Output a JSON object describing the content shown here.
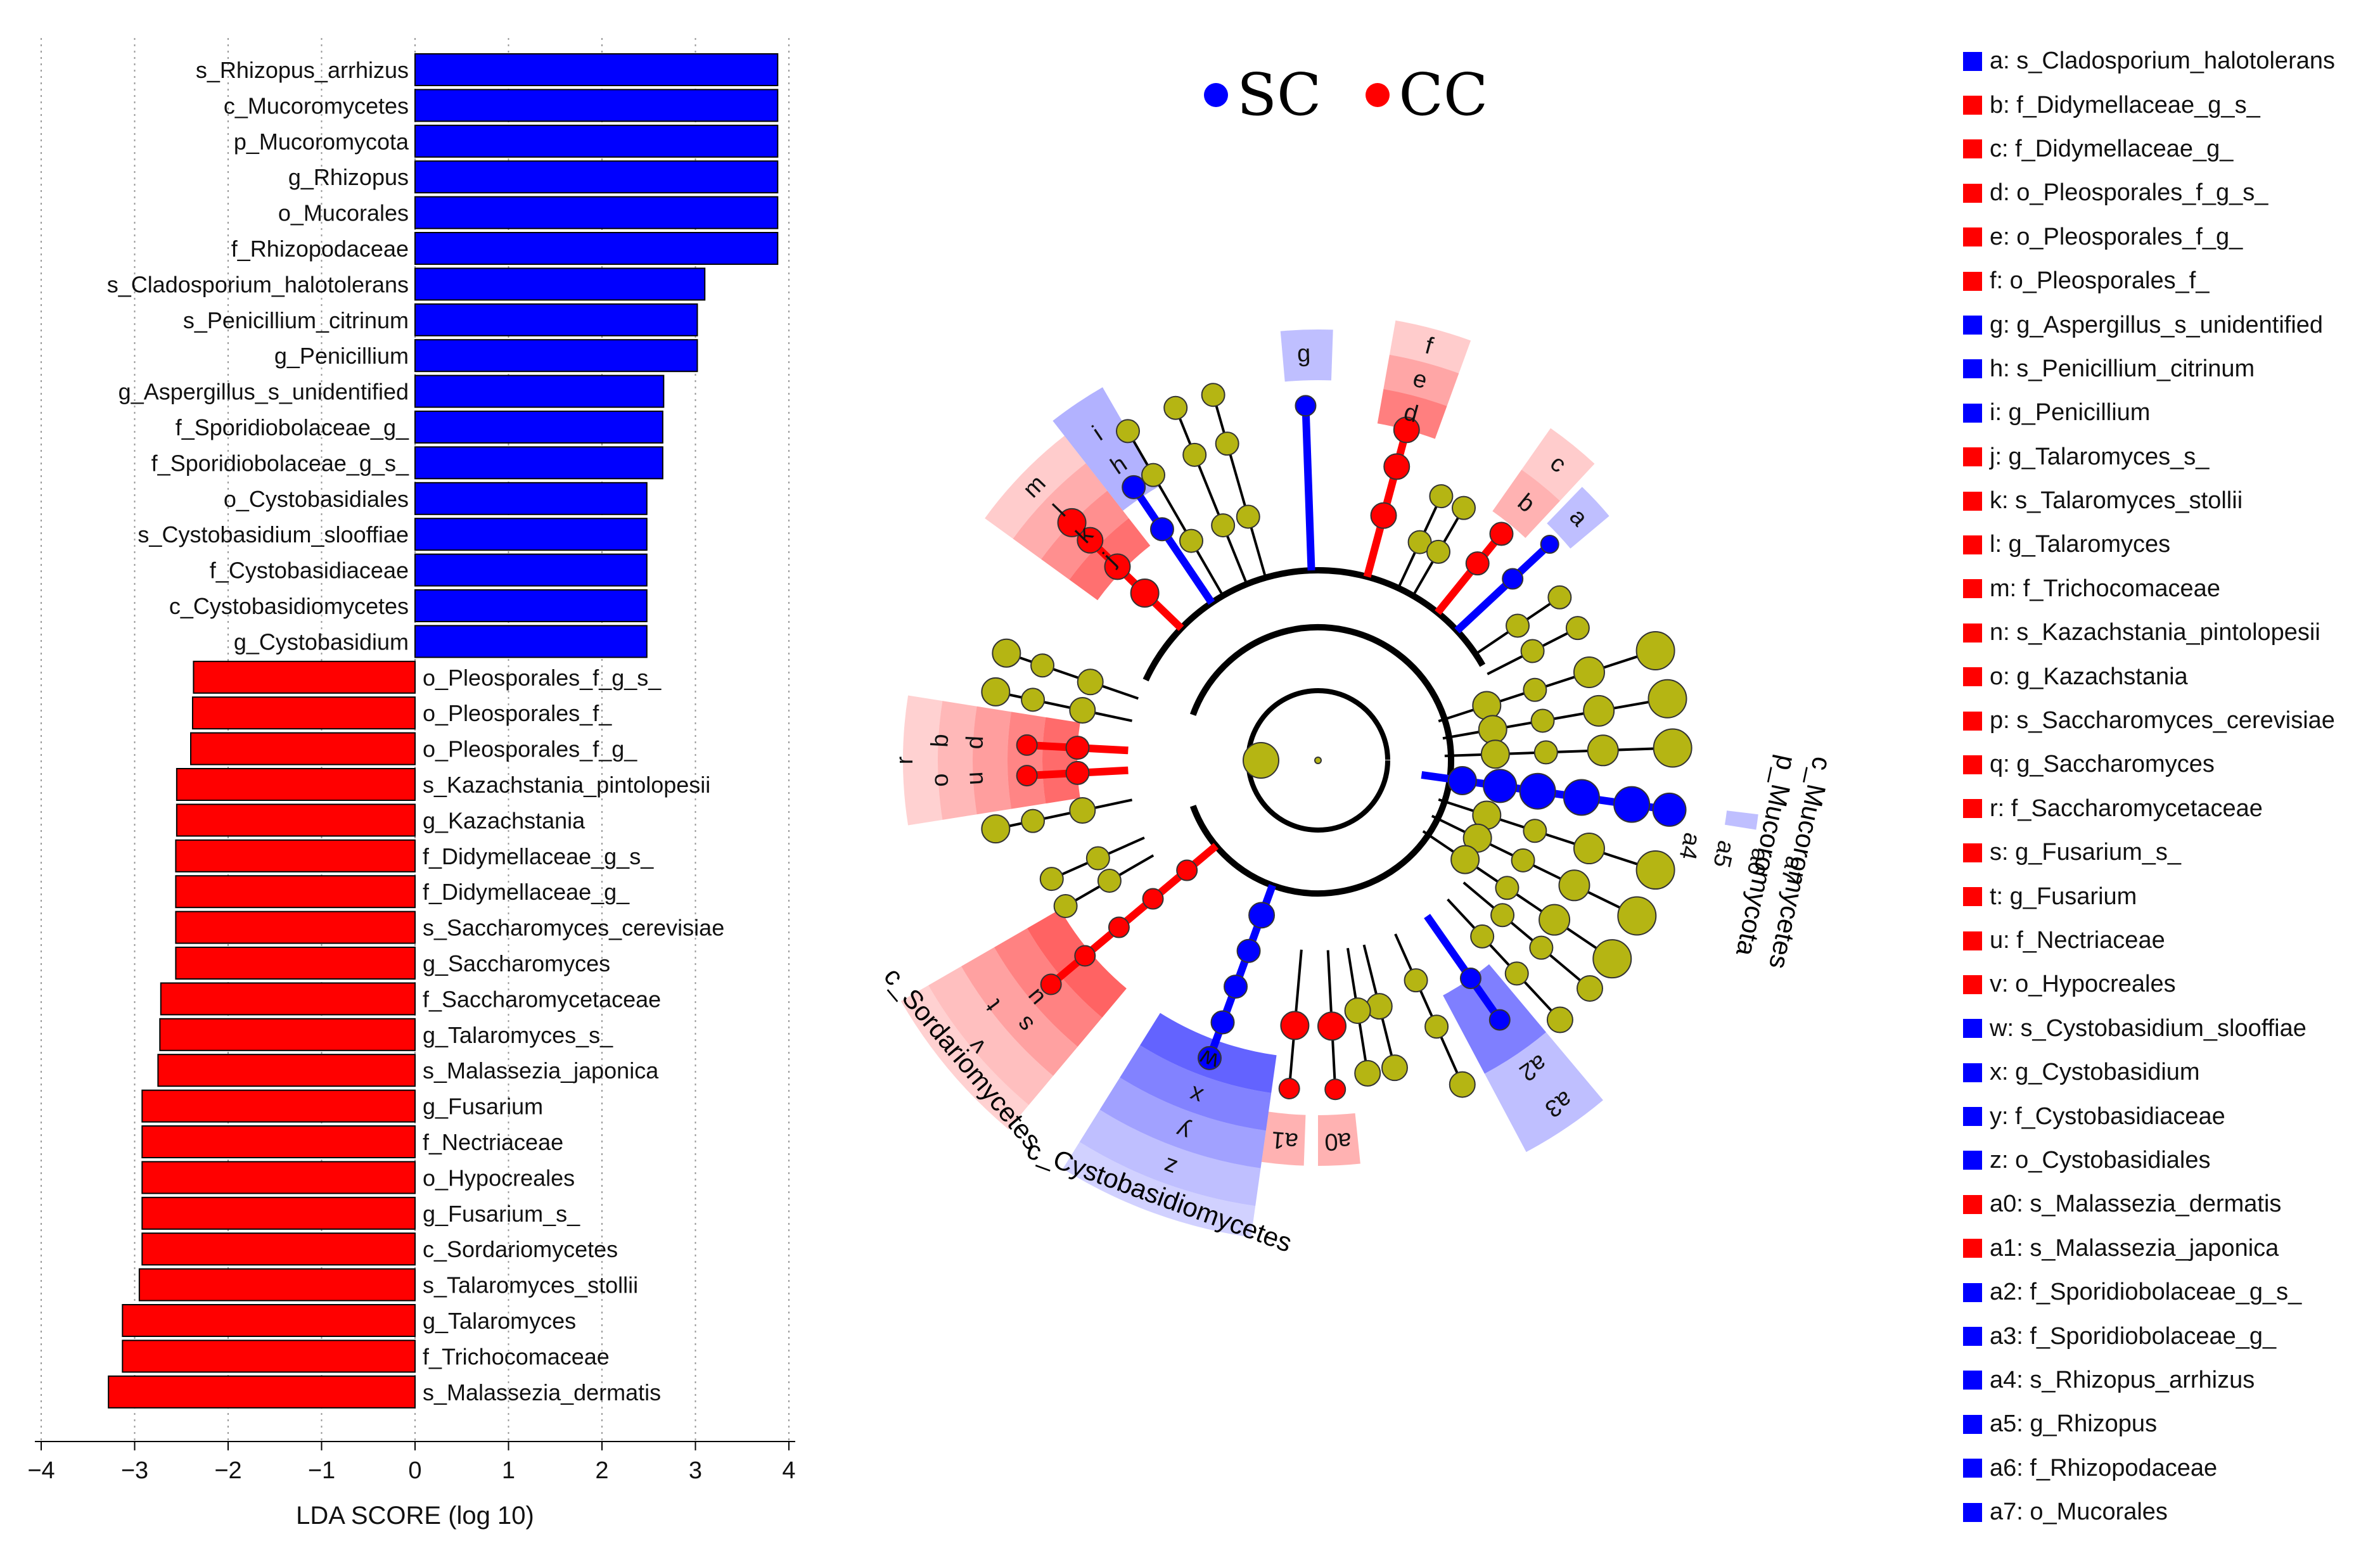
{
  "colors": {
    "SC": "#0000ff",
    "CC": "#ff0000",
    "node": "#b5b513"
  },
  "groups": [
    {
      "name": "SC",
      "color": "#0000ff"
    },
    {
      "name": "CC",
      "color": "#ff0000"
    }
  ],
  "chart_data": [
    {
      "type": "bar",
      "orientation": "horizontal",
      "title": "",
      "xlabel": "LDA SCORE (log 10)",
      "ylabel": "",
      "xlim": [
        -4,
        4
      ],
      "xticks": [
        "−4",
        "−3",
        "−2",
        "−1",
        "0",
        "1",
        "2",
        "3",
        "4"
      ],
      "grid": "vertical dotted",
      "bars": [
        {
          "label": "s_Rhizopus_arrhizus",
          "value": 3.88,
          "group": "SC"
        },
        {
          "label": "c_Mucoromycetes",
          "value": 3.88,
          "group": "SC"
        },
        {
          "label": "p_Mucoromycota",
          "value": 3.88,
          "group": "SC"
        },
        {
          "label": "g_Rhizopus",
          "value": 3.88,
          "group": "SC"
        },
        {
          "label": "o_Mucorales",
          "value": 3.88,
          "group": "SC"
        },
        {
          "label": "f_Rhizopodaceae",
          "value": 3.88,
          "group": "SC"
        },
        {
          "label": "s_Cladosporium_halotolerans",
          "value": 3.1,
          "group": "SC"
        },
        {
          "label": "s_Penicillium_citrinum",
          "value": 3.02,
          "group": "SC"
        },
        {
          "label": "g_Penicillium",
          "value": 3.02,
          "group": "SC"
        },
        {
          "label": "g_Aspergillus_s_unidentified",
          "value": 2.66,
          "group": "SC"
        },
        {
          "label": "f_Sporidiobolaceae_g_",
          "value": 2.65,
          "group": "SC"
        },
        {
          "label": "f_Sporidiobolaceae_g_s_",
          "value": 2.65,
          "group": "SC"
        },
        {
          "label": "o_Cystobasidiales",
          "value": 2.48,
          "group": "SC"
        },
        {
          "label": "s_Cystobasidium_slooffiae",
          "value": 2.48,
          "group": "SC"
        },
        {
          "label": "f_Cystobasidiaceae",
          "value": 2.48,
          "group": "SC"
        },
        {
          "label": "c_Cystobasidiomycetes",
          "value": 2.48,
          "group": "SC"
        },
        {
          "label": "g_Cystobasidium",
          "value": 2.48,
          "group": "SC"
        },
        {
          "label": "o_Pleosporales_f_g_s_",
          "value": -2.37,
          "group": "CC"
        },
        {
          "label": "o_Pleosporales_f_",
          "value": -2.38,
          "group": "CC"
        },
        {
          "label": "o_Pleosporales_f_g_",
          "value": -2.4,
          "group": "CC"
        },
        {
          "label": "s_Kazachstania_pintolopesii",
          "value": -2.55,
          "group": "CC"
        },
        {
          "label": "g_Kazachstania",
          "value": -2.55,
          "group": "CC"
        },
        {
          "label": "f_Didymellaceae_g_s_",
          "value": -2.56,
          "group": "CC"
        },
        {
          "label": "f_Didymellaceae_g_",
          "value": -2.56,
          "group": "CC"
        },
        {
          "label": "s_Saccharomyces_cerevisiae",
          "value": -2.56,
          "group": "CC"
        },
        {
          "label": "g_Saccharomyces",
          "value": -2.56,
          "group": "CC"
        },
        {
          "label": "f_Saccharomycetaceae",
          "value": -2.72,
          "group": "CC"
        },
        {
          "label": "g_Talaromyces_s_",
          "value": -2.73,
          "group": "CC"
        },
        {
          "label": "s_Malassezia_japonica",
          "value": -2.75,
          "group": "CC"
        },
        {
          "label": "g_Fusarium",
          "value": -2.92,
          "group": "CC"
        },
        {
          "label": "f_Nectriaceae",
          "value": -2.92,
          "group": "CC"
        },
        {
          "label": "o_Hypocreales",
          "value": -2.92,
          "group": "CC"
        },
        {
          "label": "g_Fusarium_s_",
          "value": -2.92,
          "group": "CC"
        },
        {
          "label": "c_Sordariomycetes",
          "value": -2.92,
          "group": "CC"
        },
        {
          "label": "s_Talaromyces_stollii",
          "value": -2.95,
          "group": "CC"
        },
        {
          "label": "g_Talaromyces",
          "value": -3.13,
          "group": "CC"
        },
        {
          "label": "f_Trichocomaceae",
          "value": -3.13,
          "group": "CC"
        },
        {
          "label": "s_Malassezia_dermatis",
          "value": -3.28,
          "group": "CC"
        }
      ]
    },
    {
      "type": "cladogram",
      "title": "",
      "legend": [
        "SC",
        "CC"
      ],
      "clade_labels": [
        {
          "text": "p_Mucoromycota",
          "group": "SC"
        },
        {
          "text": "c_Mucoromycetes",
          "group": "SC"
        },
        {
          "text": "c_Cystobasidiomycetes",
          "group": "SC"
        },
        {
          "text": "c_Sordariomycetes",
          "group": "CC"
        }
      ],
      "highlighted_clades": [
        {
          "id": "g",
          "group": "SC"
        },
        {
          "id": "f",
          "group": "CC"
        },
        {
          "id": "e",
          "group": "CC"
        },
        {
          "id": "d",
          "group": "CC"
        },
        {
          "id": "c",
          "group": "CC"
        },
        {
          "id": "b",
          "group": "CC"
        },
        {
          "id": "a",
          "group": "SC"
        },
        {
          "id": "m",
          "group": "CC"
        },
        {
          "id": "l",
          "group": "CC"
        },
        {
          "id": "k",
          "group": "CC"
        },
        {
          "id": "j",
          "group": "CC"
        },
        {
          "id": "i",
          "group": "SC"
        },
        {
          "id": "h",
          "group": "SC"
        },
        {
          "id": "r",
          "group": "CC"
        },
        {
          "id": "q",
          "group": "CC"
        },
        {
          "id": "p",
          "group": "CC"
        },
        {
          "id": "o",
          "group": "CC"
        },
        {
          "id": "n",
          "group": "CC"
        },
        {
          "id": "s",
          "group": "CC"
        },
        {
          "id": "t",
          "group": "CC"
        },
        {
          "id": "u",
          "group": "CC"
        },
        {
          "id": "v",
          "group": "CC"
        },
        {
          "id": "w",
          "group": "SC"
        },
        {
          "id": "x",
          "group": "SC"
        },
        {
          "id": "y",
          "group": "SC"
        },
        {
          "id": "z",
          "group": "SC"
        },
        {
          "id": "a0",
          "group": "CC"
        },
        {
          "id": "a1",
          "group": "CC"
        },
        {
          "id": "a2",
          "group": "SC"
        },
        {
          "id": "a3",
          "group": "SC"
        },
        {
          "id": "a4",
          "group": "SC"
        },
        {
          "id": "a5",
          "group": "SC"
        },
        {
          "id": "a6",
          "group": "SC"
        },
        {
          "id": "a7",
          "group": "SC"
        }
      ],
      "key": [
        {
          "text": "a: s_Cladosporium_halotolerans",
          "group": "SC"
        },
        {
          "text": "b: f_Didymellaceae_g_s_",
          "group": "CC"
        },
        {
          "text": "c: f_Didymellaceae_g_",
          "group": "CC"
        },
        {
          "text": "d: o_Pleosporales_f_g_s_",
          "group": "CC"
        },
        {
          "text": "e: o_Pleosporales_f_g_",
          "group": "CC"
        },
        {
          "text": "f: o_Pleosporales_f_",
          "group": "CC"
        },
        {
          "text": "g: g_Aspergillus_s_unidentified",
          "group": "SC"
        },
        {
          "text": "h: s_Penicillium_citrinum",
          "group": "SC"
        },
        {
          "text": "i: g_Penicillium",
          "group": "SC"
        },
        {
          "text": "j: g_Talaromyces_s_",
          "group": "CC"
        },
        {
          "text": "k: s_Talaromyces_stollii",
          "group": "CC"
        },
        {
          "text": "l: g_Talaromyces",
          "group": "CC"
        },
        {
          "text": "m: f_Trichocomaceae",
          "group": "CC"
        },
        {
          "text": "n: s_Kazachstania_pintolopesii",
          "group": "CC"
        },
        {
          "text": "o: g_Kazachstania",
          "group": "CC"
        },
        {
          "text": "p: s_Saccharomyces_cerevisiae",
          "group": "CC"
        },
        {
          "text": "q: g_Saccharomyces",
          "group": "CC"
        },
        {
          "text": "r: f_Saccharomycetaceae",
          "group": "CC"
        },
        {
          "text": "s: g_Fusarium_s_",
          "group": "CC"
        },
        {
          "text": "t: g_Fusarium",
          "group": "CC"
        },
        {
          "text": "u: f_Nectriaceae",
          "group": "CC"
        },
        {
          "text": "v: o_Hypocreales",
          "group": "CC"
        },
        {
          "text": "w: s_Cystobasidium_slooffiae",
          "group": "SC"
        },
        {
          "text": "x: g_Cystobasidium",
          "group": "SC"
        },
        {
          "text": "y: f_Cystobasidiaceae",
          "group": "SC"
        },
        {
          "text": "z: o_Cystobasidiales",
          "group": "SC"
        },
        {
          "text": "a0: s_Malassezia_dermatis",
          "group": "CC"
        },
        {
          "text": "a1: s_Malassezia_japonica",
          "group": "CC"
        },
        {
          "text": "a2: f_Sporidiobolaceae_g_s_",
          "group": "SC"
        },
        {
          "text": "a3: f_Sporidiobolaceae_g_",
          "group": "SC"
        },
        {
          "text": "a4: s_Rhizopus_arrhizus",
          "group": "SC"
        },
        {
          "text": "a5: g_Rhizopus",
          "group": "SC"
        },
        {
          "text": "a6: f_Rhizopodaceae",
          "group": "SC"
        },
        {
          "text": "a7: o_Mucorales",
          "group": "SC"
        }
      ]
    }
  ]
}
